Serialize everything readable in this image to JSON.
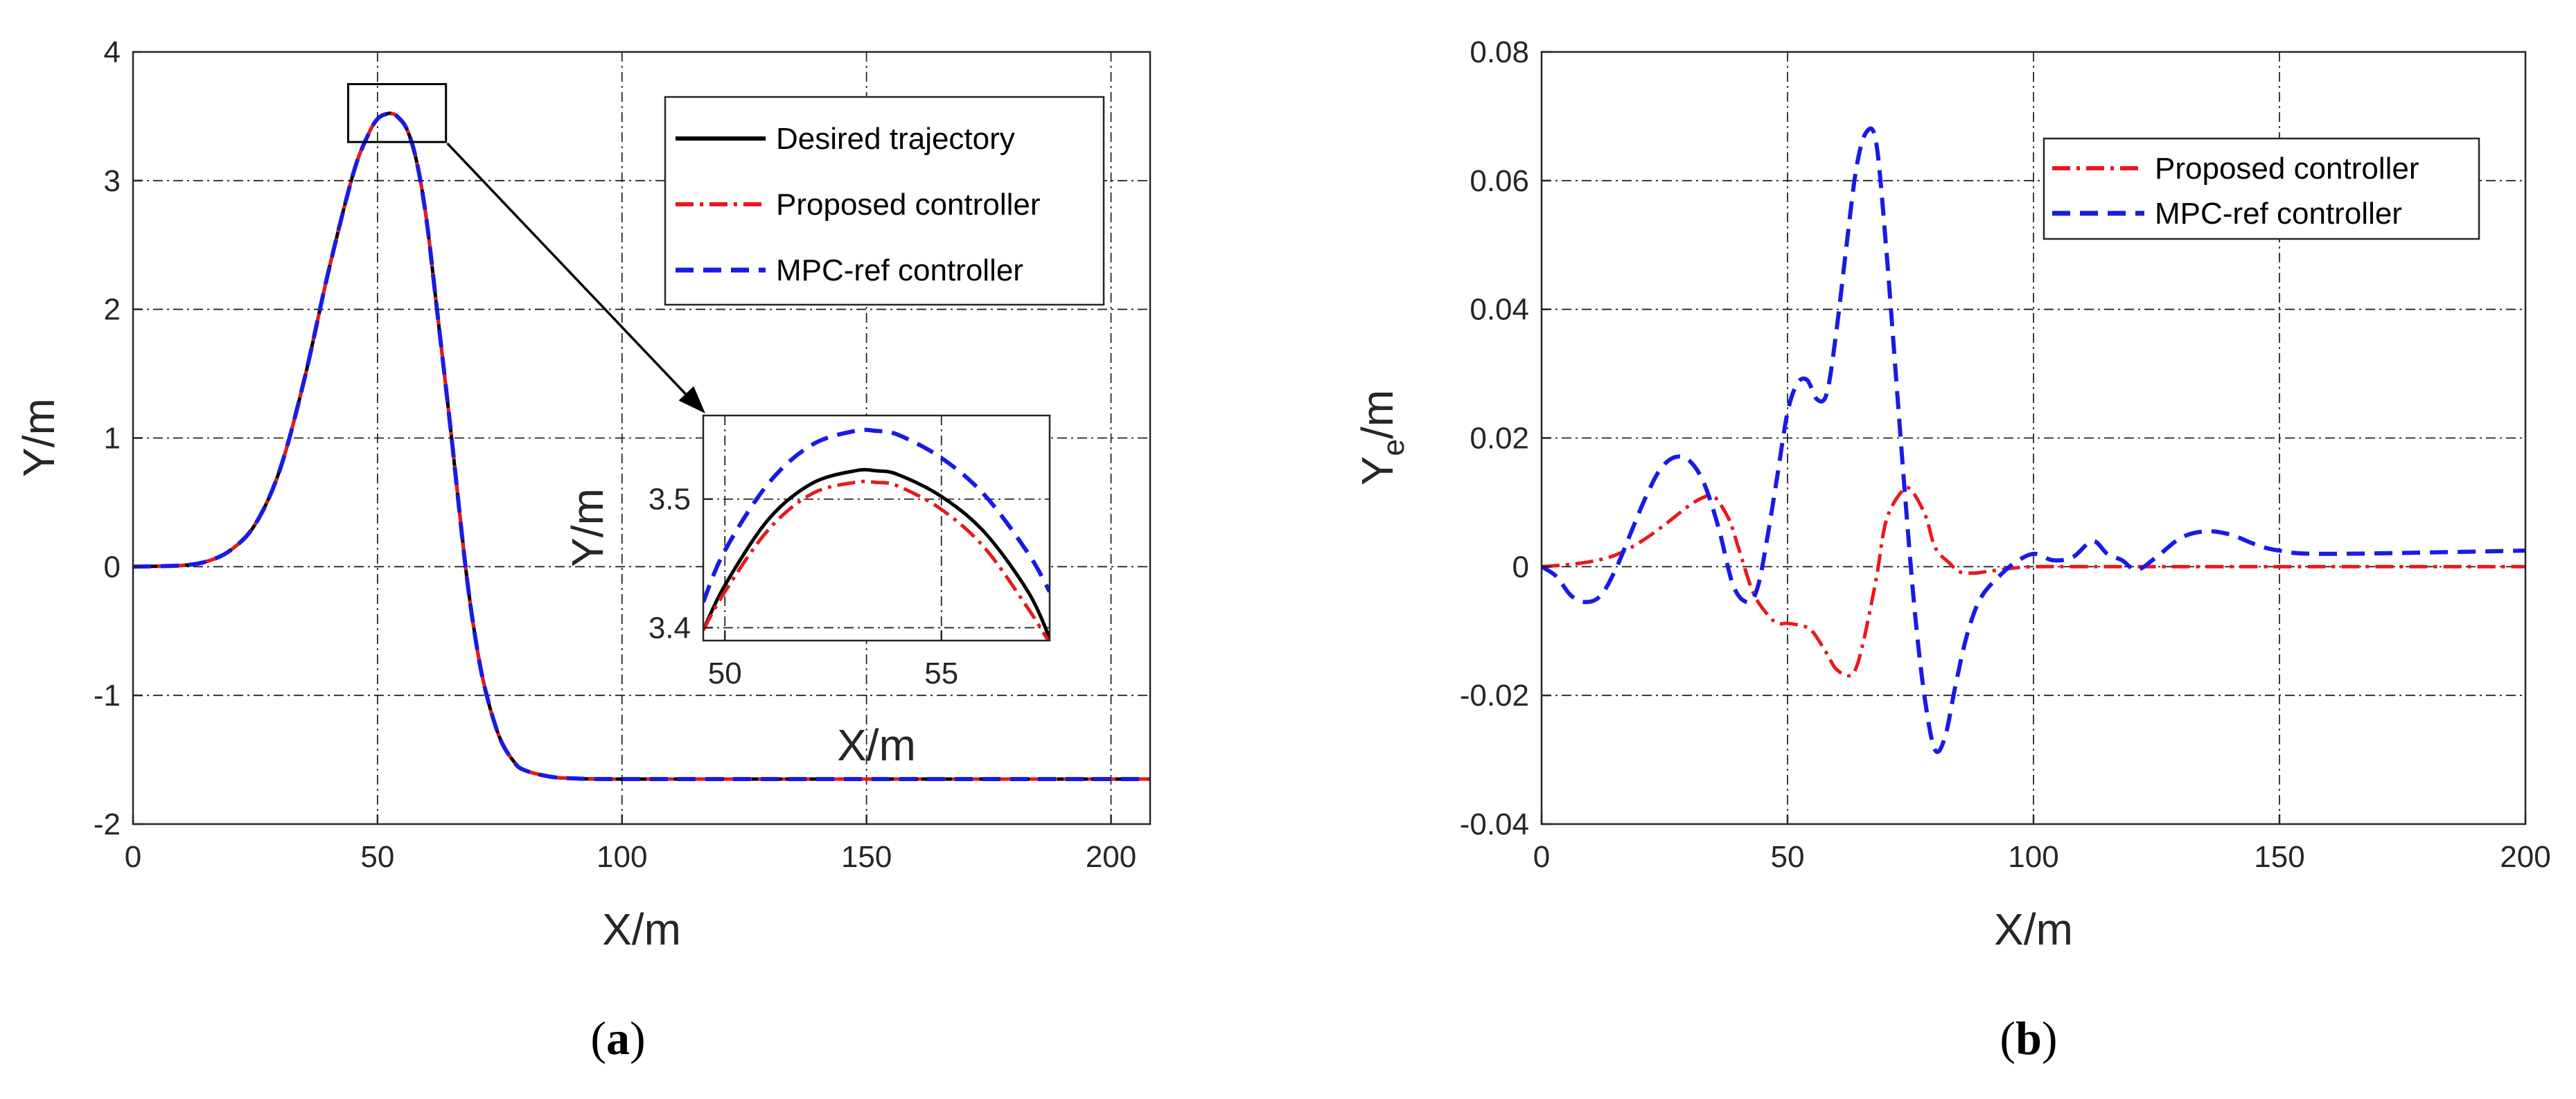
{
  "chart_data": [
    {
      "type": "line",
      "panel_label": "a",
      "xlabel": "X/m",
      "ylabel": "Y/m",
      "xlim": [
        0,
        208
      ],
      "ylim": [
        -2,
        4
      ],
      "xticks": [
        0,
        50,
        100,
        150,
        200
      ],
      "yticks": [
        -2,
        -1,
        0,
        1,
        2,
        3,
        4
      ],
      "grid": true,
      "legend_position": "top-right",
      "series": [
        {
          "name": "Desired trajectory",
          "color": "#000000",
          "style": "solid"
        },
        {
          "name": "Proposed controller",
          "color": "#e8191c",
          "style": "dashdot"
        },
        {
          "name": "MPC-ref controller",
          "color": "#1a1ae6",
          "style": "dashed"
        }
      ],
      "curve": {
        "x": [
          0,
          10,
          15,
          20,
          25,
          30,
          35,
          40,
          45,
          48,
          50,
          52,
          53,
          54,
          56,
          58,
          60,
          62,
          65,
          68,
          70,
          72,
          75,
          78,
          80,
          85,
          90,
          100,
          150,
          208
        ],
        "y": [
          0,
          0.01,
          0.04,
          0.13,
          0.33,
          0.75,
          1.45,
          2.3,
          3.05,
          3.35,
          3.48,
          3.52,
          3.52,
          3.5,
          3.4,
          3.15,
          2.7,
          2.05,
          1.05,
          0.0,
          -0.55,
          -0.95,
          -1.33,
          -1.52,
          -1.58,
          -1.63,
          -1.645,
          -1.65,
          -1.65,
          -1.65
        ]
      },
      "zoom_box": {
        "x": [
          44,
          64
        ],
        "y": [
          3.3,
          3.75
        ]
      },
      "inset": {
        "xlabel": "X/m",
        "ylabel": "Y/m",
        "xlim": [
          49.5,
          57.5
        ],
        "ylim": [
          3.39,
          3.565
        ],
        "xticks": [
          50,
          55
        ],
        "yticks": [
          3.4,
          3.5
        ],
        "desired": {
          "x": [
            49.5,
            50,
            51,
            52,
            53,
            53.5,
            54,
            55,
            56,
            57,
            57.5
          ],
          "y": [
            3.398,
            3.433,
            3.484,
            3.512,
            3.522,
            3.522,
            3.519,
            3.502,
            3.474,
            3.428,
            3.392
          ]
        },
        "proposed": {
          "x": [
            49.5,
            50,
            51,
            52,
            53,
            53.5,
            54,
            55,
            56,
            57,
            57.5
          ],
          "y": [
            3.398,
            3.428,
            3.476,
            3.504,
            3.513,
            3.513,
            3.51,
            3.492,
            3.462,
            3.415,
            3.388
          ]
        },
        "mpc": {
          "x": [
            49.5,
            50,
            51,
            52,
            53,
            53.5,
            54,
            55,
            56,
            57,
            57.5
          ],
          "y": [
            3.42,
            3.46,
            3.512,
            3.542,
            3.553,
            3.553,
            3.55,
            3.532,
            3.503,
            3.458,
            3.428
          ]
        }
      }
    },
    {
      "type": "line",
      "panel_label": "b",
      "xlabel": "X/m",
      "ylabel_main": "Y",
      "ylabel_sub": "e",
      "ylabel_tail": "/m",
      "xlim": [
        0,
        200
      ],
      "ylim": [
        -0.04,
        0.08
      ],
      "xticks": [
        0,
        50,
        100,
        150,
        200
      ],
      "yticks": [
        -0.04,
        -0.02,
        0,
        0.02,
        0.04,
        0.06,
        0.08
      ],
      "grid": true,
      "legend_position": "top-right",
      "series": [
        {
          "name": "Proposed controller",
          "color": "#e8191c",
          "style": "dashdot",
          "x": [
            0,
            5,
            10,
            15,
            20,
            25,
            30,
            33,
            35,
            38,
            40,
            43,
            46,
            48,
            50,
            53,
            55,
            58,
            60,
            63,
            65,
            68,
            70,
            73,
            75,
            78,
            80,
            83,
            85,
            88,
            90,
            95,
            100,
            110,
            120,
            150,
            200
          ],
          "y": [
            0,
            0.0003,
            0.0008,
            0.0018,
            0.0038,
            0.0065,
            0.0095,
            0.0108,
            0.011,
            0.0075,
            0.003,
            -0.004,
            -0.0075,
            -0.0088,
            -0.0088,
            -0.0092,
            -0.01,
            -0.0135,
            -0.016,
            -0.0168,
            -0.013,
            -0.002,
            0.007,
            0.0115,
            0.012,
            0.008,
            0.003,
            0.0005,
            -0.0008,
            -0.001,
            -0.0008,
            -0.0003,
            0,
            0,
            0,
            0,
            0
          ]
        },
        {
          "name": "MPC-ref controller",
          "color": "#1a1ae6",
          "style": "dashed",
          "x": [
            0,
            3,
            6,
            9,
            12,
            15,
            18,
            21,
            24,
            27,
            30,
            33,
            36,
            39,
            42,
            44,
            46,
            48,
            50,
            52,
            54,
            56,
            58,
            60,
            62,
            64,
            66,
            68,
            70,
            72,
            74,
            76,
            78,
            80,
            82,
            84,
            86,
            88,
            90,
            93,
            96,
            100,
            104,
            108,
            112,
            115,
            118,
            121,
            125,
            130,
            135,
            140,
            145,
            150,
            160,
            200
          ],
          "y": [
            0,
            -0.0015,
            -0.0045,
            -0.0055,
            -0.0045,
            -0.0005,
            0.005,
            0.0105,
            0.015,
            0.017,
            0.0165,
            0.013,
            0.006,
            -0.003,
            -0.0055,
            -0.003,
            0.005,
            0.0145,
            0.024,
            0.0285,
            0.029,
            0.026,
            0.027,
            0.037,
            0.05,
            0.062,
            0.0675,
            0.066,
            0.05,
            0.03,
            0.01,
            -0.008,
            -0.021,
            -0.0285,
            -0.0265,
            -0.019,
            -0.012,
            -0.007,
            -0.004,
            -0.0015,
            0.0005,
            0.002,
            0.001,
            0.0015,
            0.004,
            0.002,
            0.001,
            -0.0005,
            0.0015,
            0.0045,
            0.0055,
            0.005,
            0.0035,
            0.0025,
            0.002,
            0.0025
          ]
        }
      ]
    }
  ]
}
